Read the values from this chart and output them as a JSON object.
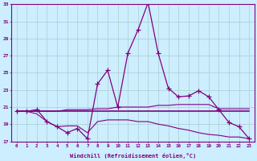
{
  "xlabel": "Windchill (Refroidissement éolien,°C)",
  "background_color": "#cceeff",
  "line_color": "#800080",
  "grid_color": "#aacccc",
  "x": [
    0,
    1,
    2,
    3,
    4,
    5,
    6,
    7,
    8,
    9,
    10,
    11,
    12,
    13,
    14,
    15,
    16,
    17,
    18,
    19,
    20,
    21,
    22,
    23
  ],
  "line1": [
    20.5,
    20.5,
    20.7,
    19.3,
    18.7,
    18.0,
    18.5,
    17.3,
    23.7,
    25.3,
    21.0,
    27.3,
    30.0,
    33.2,
    27.3,
    23.2,
    22.2,
    22.3,
    22.9,
    22.2,
    20.7,
    19.2,
    18.7,
    17.3
  ],
  "line2": [
    20.5,
    20.5,
    20.5,
    20.5,
    20.5,
    20.5,
    20.5,
    20.5,
    20.5,
    20.5,
    20.5,
    20.5,
    20.5,
    20.5,
    20.5,
    20.5,
    20.5,
    20.5,
    20.5,
    20.5,
    20.5,
    20.5,
    20.5,
    20.5
  ],
  "line3": [
    20.5,
    20.5,
    20.5,
    20.5,
    20.5,
    20.7,
    20.7,
    20.7,
    20.8,
    20.8,
    21.0,
    21.0,
    21.0,
    21.0,
    21.2,
    21.2,
    21.3,
    21.3,
    21.3,
    21.3,
    20.8,
    20.8,
    20.8,
    20.8
  ],
  "line4": [
    20.5,
    20.5,
    20.2,
    19.3,
    18.7,
    18.8,
    18.8,
    18.0,
    19.3,
    19.5,
    19.5,
    19.5,
    19.3,
    19.3,
    19.0,
    18.8,
    18.5,
    18.3,
    18.0,
    17.8,
    17.7,
    17.5,
    17.5,
    17.3
  ],
  "ylim": [
    17,
    33
  ],
  "xlim": [
    -0.5,
    23.5
  ],
  "yticks": [
    17,
    19,
    21,
    23,
    25,
    27,
    29,
    31,
    33
  ]
}
